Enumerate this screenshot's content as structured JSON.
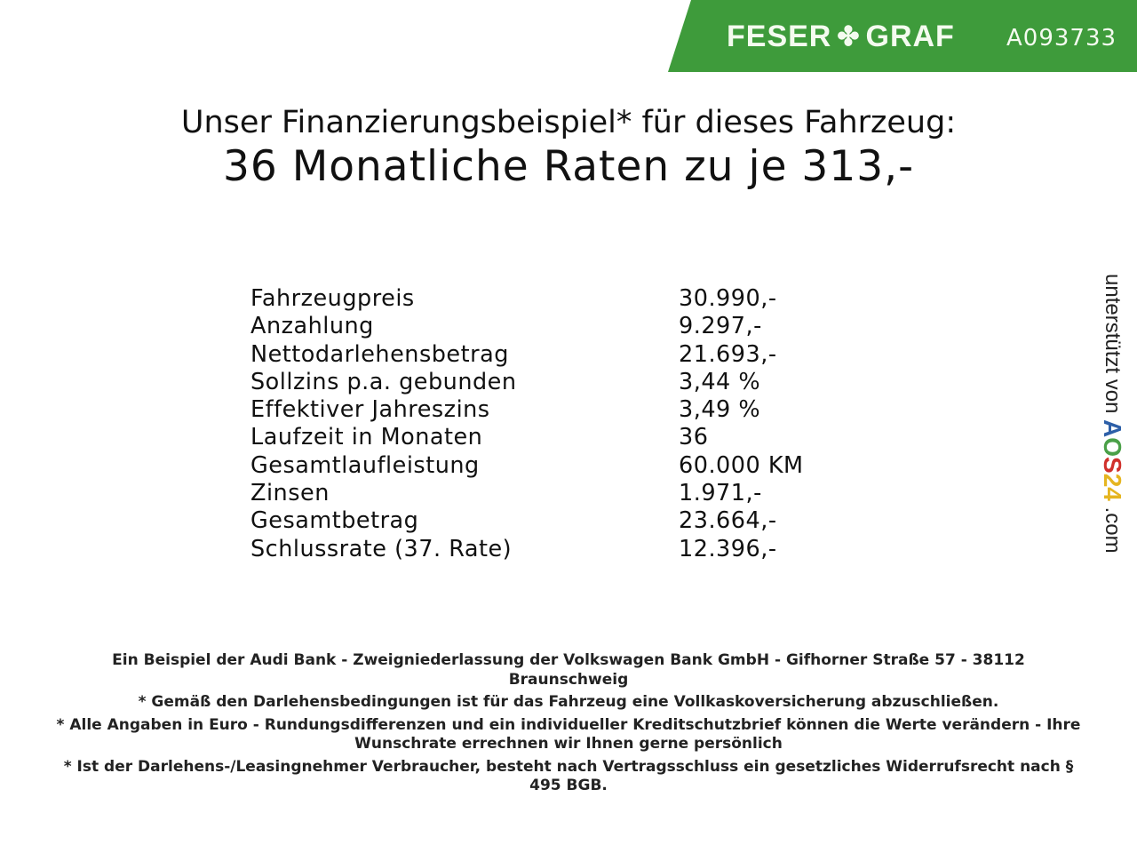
{
  "header": {
    "brand_left": "FESER",
    "brand_right": "GRAF",
    "brand_icon": "clover-icon",
    "code": "A093733",
    "banner_color": "#3e9b3b"
  },
  "title": "Unser Finanzierungsbeispiel* für dieses Fahrzeug:",
  "subtitle": "36 Monatliche Raten zu je 313,-",
  "rows": [
    {
      "label": "Fahrzeugpreis",
      "value": "30.990,-"
    },
    {
      "label": "Anzahlung",
      "value": "9.297,-"
    },
    {
      "label": "Nettodarlehensbetrag",
      "value": "21.693,-"
    },
    {
      "label": "Sollzins p.a. gebunden",
      "value": "3,44 %"
    },
    {
      "label": "Effektiver Jahreszins",
      "value": "3,49 %"
    },
    {
      "label": "Laufzeit in Monaten",
      "value": "36"
    },
    {
      "label": "Gesamtlaufleistung",
      "value": "60.000 KM"
    },
    {
      "label": "Zinsen",
      "value": "1.971,-"
    },
    {
      "label": "Gesamtbetrag",
      "value": "23.664,-"
    },
    {
      "label": "Schlussrate (37. Rate)",
      "value": "12.396,-"
    }
  ],
  "footer": [
    "Ein Beispiel der Audi Bank - Zweigniederlassung der Volkswagen Bank GmbH - Gifhorner Straße 57 - 38112 Braunschweig",
    "* Gemäß den Darlehensbedingungen ist für das Fahrzeug eine Vollkaskoversicherung abzuschließen.",
    "* Alle Angaben in Euro - Rundungsdifferenzen und ein individueller Kreditschutzbrief können die Werte verändern - Ihre Wunschrate errechnen wir Ihnen gerne persönlich",
    "* Ist der Darlehens-/Leasingnehmer Verbraucher, besteht nach Vertragsschluss ein gesetzliches Widerrufsrecht nach § 495 BGB."
  ],
  "side": {
    "prefix": "unterstützt von",
    "logo": [
      "A",
      "O",
      "S",
      "24"
    ],
    "suffix": ".com"
  }
}
